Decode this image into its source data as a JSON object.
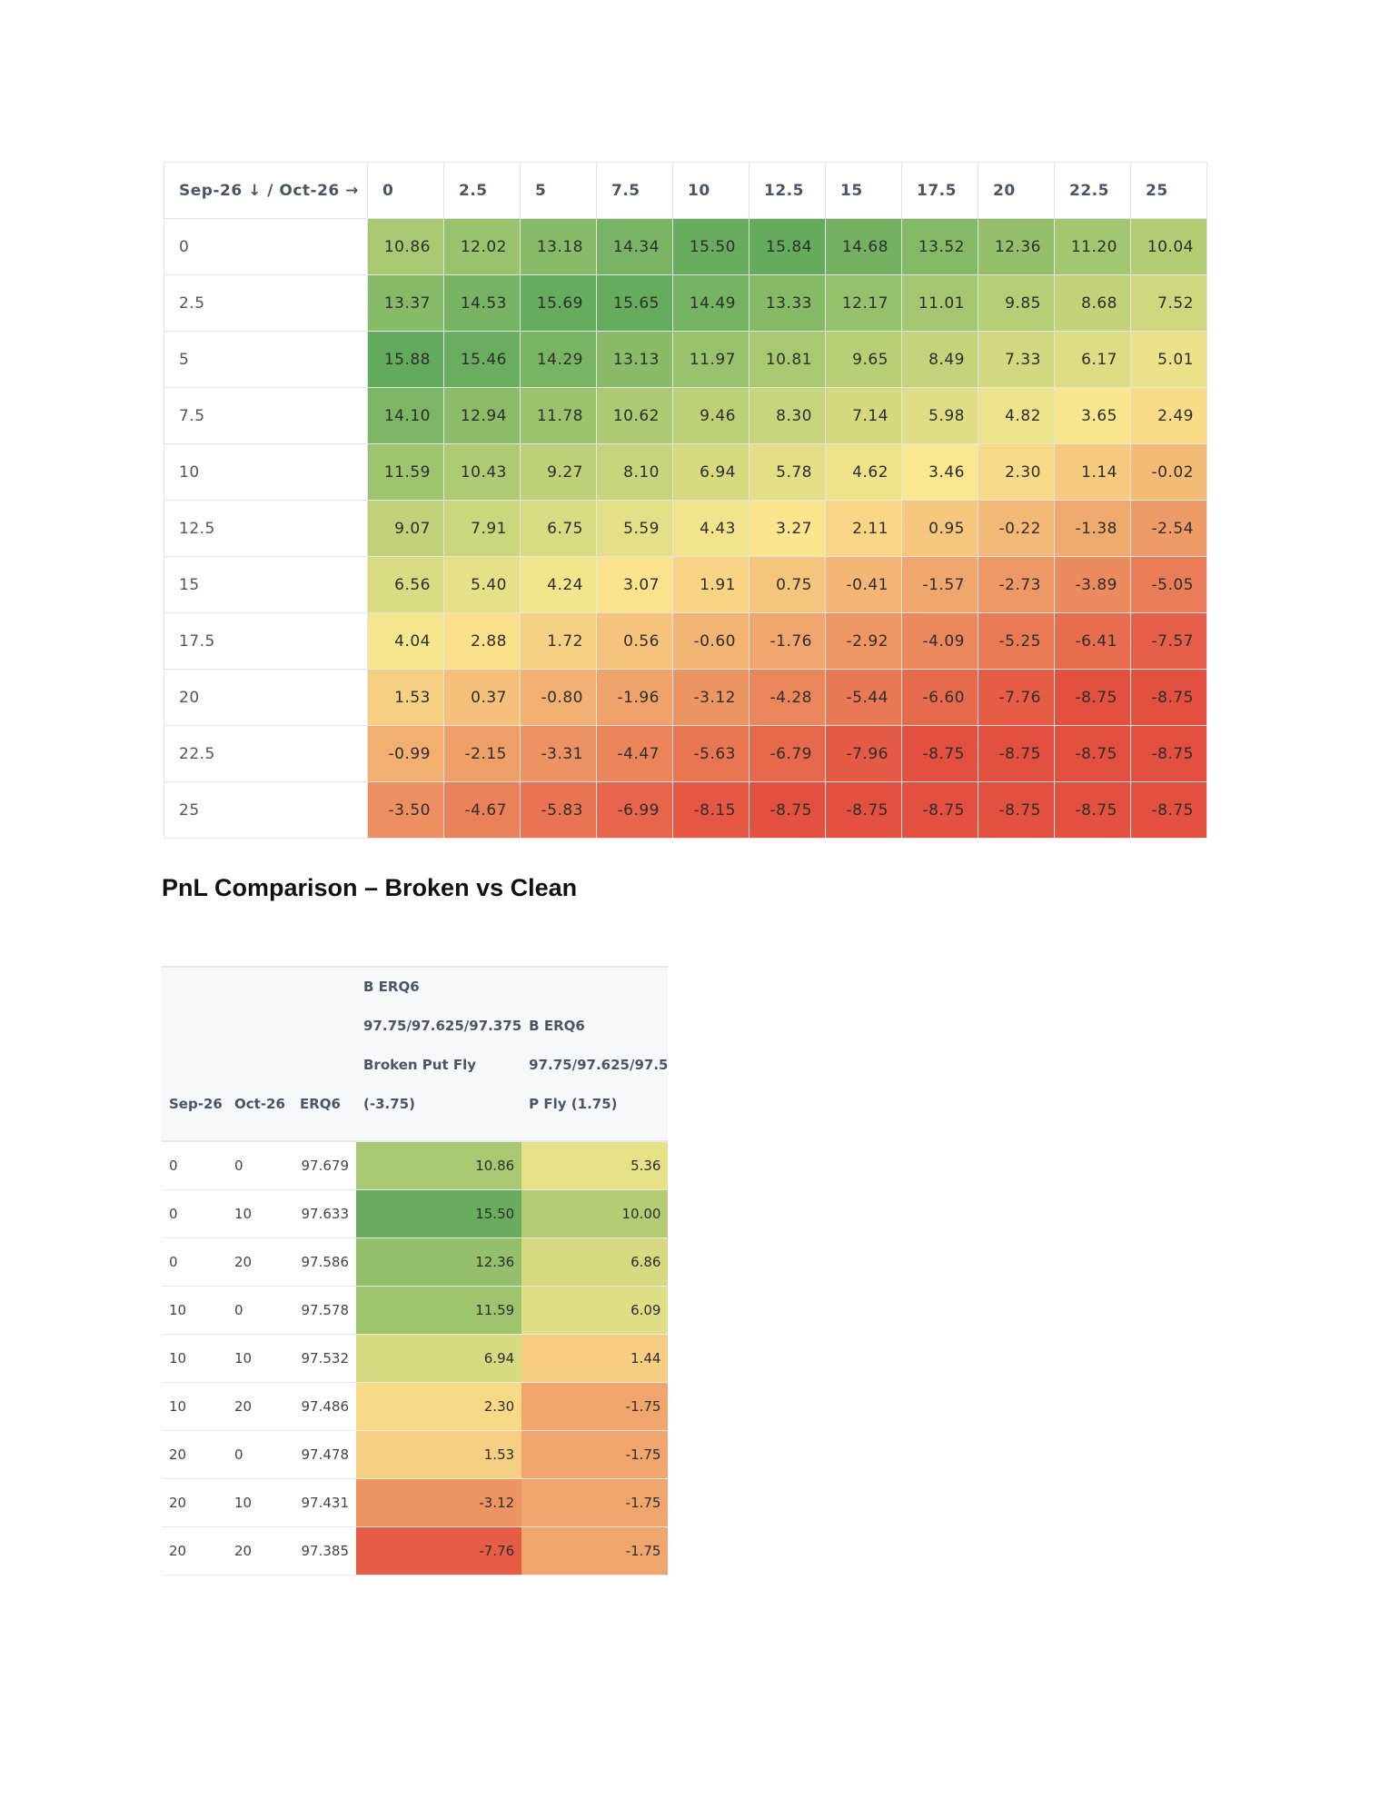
{
  "heatmap": {
    "corner": "Sep-26 ↓ / Oct-26 →",
    "columns": [
      "0",
      "2.5",
      "5",
      "7.5",
      "10",
      "12.5",
      "15",
      "17.5",
      "20",
      "22.5",
      "25"
    ],
    "rows": [
      {
        "label": "0",
        "values": [
          "10.86",
          "12.02",
          "13.18",
          "14.34",
          "15.50",
          "15.84",
          "14.68",
          "13.52",
          "12.36",
          "11.20",
          "10.04"
        ]
      },
      {
        "label": "2.5",
        "values": [
          "13.37",
          "14.53",
          "15.69",
          "15.65",
          "14.49",
          "13.33",
          "12.17",
          "11.01",
          "9.85",
          "8.68",
          "7.52"
        ]
      },
      {
        "label": "5",
        "values": [
          "15.88",
          "15.46",
          "14.29",
          "13.13",
          "11.97",
          "10.81",
          "9.65",
          "8.49",
          "7.33",
          "6.17",
          "5.01"
        ]
      },
      {
        "label": "7.5",
        "values": [
          "14.10",
          "12.94",
          "11.78",
          "10.62",
          "9.46",
          "8.30",
          "7.14",
          "5.98",
          "4.82",
          "3.65",
          "2.49"
        ]
      },
      {
        "label": "10",
        "values": [
          "11.59",
          "10.43",
          "9.27",
          "8.10",
          "6.94",
          "5.78",
          "4.62",
          "3.46",
          "2.30",
          "1.14",
          "-0.02"
        ]
      },
      {
        "label": "12.5",
        "values": [
          "9.07",
          "7.91",
          "6.75",
          "5.59",
          "4.43",
          "3.27",
          "2.11",
          "0.95",
          "-0.22",
          "-1.38",
          "-2.54"
        ]
      },
      {
        "label": "15",
        "values": [
          "6.56",
          "5.40",
          "4.24",
          "3.07",
          "1.91",
          "0.75",
          "-0.41",
          "-1.57",
          "-2.73",
          "-3.89",
          "-5.05"
        ]
      },
      {
        "label": "17.5",
        "values": [
          "4.04",
          "2.88",
          "1.72",
          "0.56",
          "-0.60",
          "-1.76",
          "-2.92",
          "-4.09",
          "-5.25",
          "-6.41",
          "-7.57"
        ]
      },
      {
        "label": "20",
        "values": [
          "1.53",
          "0.37",
          "-0.80",
          "-1.96",
          "-3.12",
          "-4.28",
          "-5.44",
          "-6.60",
          "-7.76",
          "-8.75",
          "-8.75"
        ]
      },
      {
        "label": "22.5",
        "values": [
          "-0.99",
          "-2.15",
          "-3.31",
          "-4.47",
          "-5.63",
          "-6.79",
          "-7.96",
          "-8.75",
          "-8.75",
          "-8.75",
          "-8.75"
        ]
      },
      {
        "label": "25",
        "values": [
          "-3.50",
          "-4.67",
          "-5.83",
          "-6.99",
          "-8.15",
          "-8.75",
          "-8.75",
          "-8.75",
          "-8.75",
          "-8.75",
          "-8.75"
        ]
      }
    ]
  },
  "heading": "PnL Comparison – Broken vs Clean",
  "comparison": {
    "headers": {
      "sep": "Sep-26",
      "oct": "Oct-26",
      "erq": "ERQ6",
      "broken": [
        "B ERQ6",
        "97.75/97.625/97.375",
        "Broken Put Fly",
        "(-3.75)"
      ],
      "clean": [
        "B ERQ6",
        "97.75/97.625/97.5",
        "P Fly (1.75)"
      ]
    },
    "rows": [
      {
        "sep": "0",
        "oct": "0",
        "erq": "97.679",
        "broken": "10.86",
        "clean": "5.36"
      },
      {
        "sep": "0",
        "oct": "10",
        "erq": "97.633",
        "broken": "15.50",
        "clean": "10.00"
      },
      {
        "sep": "0",
        "oct": "20",
        "erq": "97.586",
        "broken": "12.36",
        "clean": "6.86"
      },
      {
        "sep": "10",
        "oct": "0",
        "erq": "97.578",
        "broken": "11.59",
        "clean": "6.09"
      },
      {
        "sep": "10",
        "oct": "10",
        "erq": "97.532",
        "broken": "6.94",
        "clean": "1.44"
      },
      {
        "sep": "10",
        "oct": "20",
        "erq": "97.486",
        "broken": "2.30",
        "clean": "-1.75"
      },
      {
        "sep": "20",
        "oct": "0",
        "erq": "97.478",
        "broken": "1.53",
        "clean": "-1.75"
      },
      {
        "sep": "20",
        "oct": "10",
        "erq": "97.431",
        "broken": "-3.12",
        "clean": "-1.75"
      },
      {
        "sep": "20",
        "oct": "20",
        "erq": "97.385",
        "broken": "-7.76",
        "clean": "-1.75"
      }
    ]
  },
  "colors": {
    "high": "#63ab5c",
    "mid": "#fbe88f",
    "low": "#e4503f"
  }
}
